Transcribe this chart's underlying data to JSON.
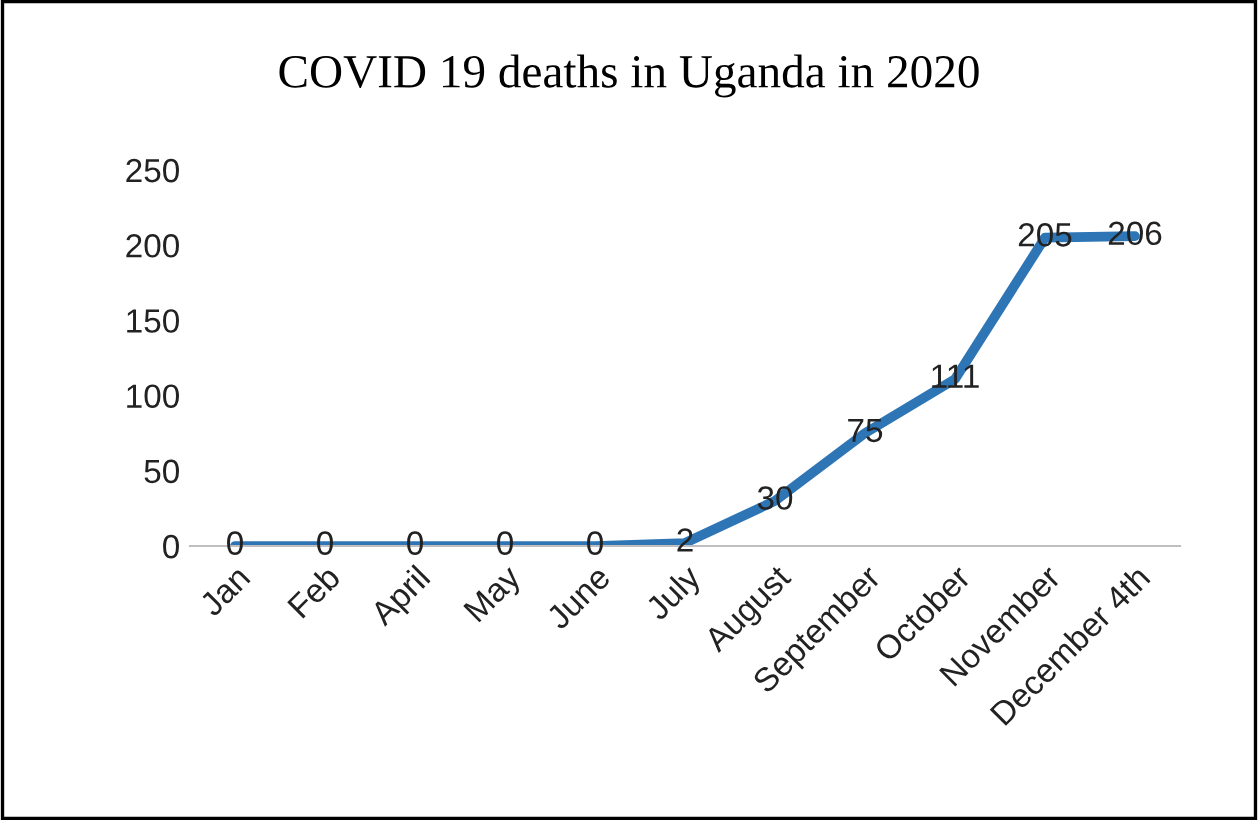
{
  "chart_data": {
    "type": "line",
    "title": "COVID 19 deaths in Uganda in 2020",
    "categories": [
      "Jan",
      "Feb",
      "April",
      "May",
      "June",
      "July",
      "August",
      "September",
      "October",
      "November",
      "December 4th"
    ],
    "values": [
      0,
      0,
      0,
      0,
      0,
      2,
      30,
      75,
      111,
      205,
      206
    ],
    "color": "#2e75b6",
    "ylim": [
      0,
      250
    ],
    "yticks": [
      0,
      50,
      100,
      150,
      200,
      250
    ],
    "grid": false,
    "data_labels": true,
    "marker": "none",
    "line_style": "solid"
  }
}
